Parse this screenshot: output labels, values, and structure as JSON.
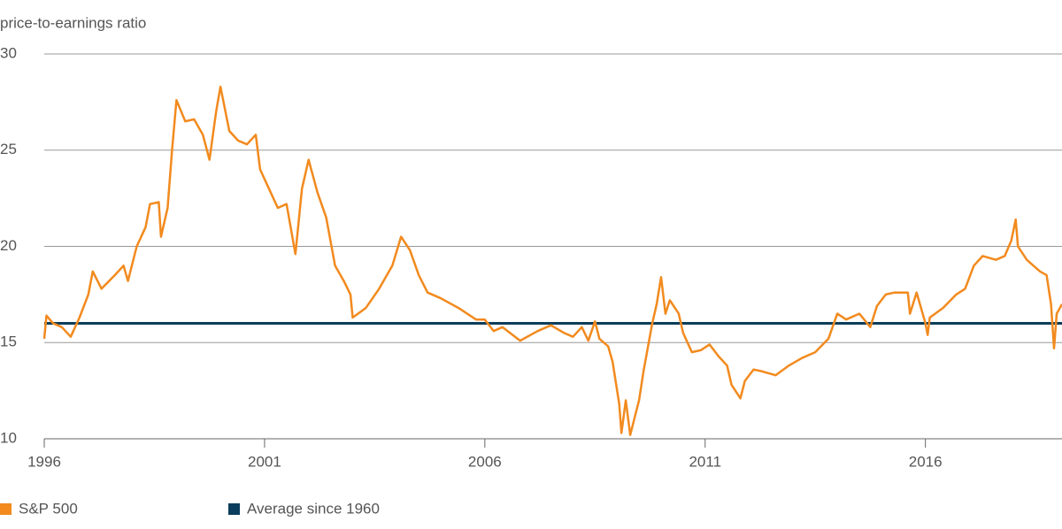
{
  "chart_data": {
    "type": "line",
    "y_label": "price-to-earnings ratio",
    "xlim": [
      1996,
      2019.1
    ],
    "xticks": [
      1996,
      2001,
      2006,
      2011,
      2016
    ],
    "ylim": [
      10,
      30
    ],
    "yticks": [
      10,
      15,
      20,
      25,
      30
    ],
    "grid": true,
    "legend": "bottom",
    "series": [
      {
        "name": "S&P 500",
        "color": "#f28a1e",
        "x": [
          1996.0,
          1996.05,
          1996.2,
          1996.4,
          1996.6,
          1996.8,
          1997.0,
          1997.1,
          1997.3,
          1997.6,
          1997.8,
          1997.9,
          1998.1,
          1998.3,
          1998.4,
          1998.6,
          1998.65,
          1998.8,
          1998.9,
          1999.0,
          1999.2,
          1999.4,
          1999.6,
          1999.75,
          1999.9,
          2000.0,
          2000.2,
          2000.4,
          2000.6,
          2000.8,
          2000.9,
          2001.1,
          2001.3,
          2001.5,
          2001.7,
          2001.85,
          2002.0,
          2002.2,
          2002.4,
          2002.6,
          2002.8,
          2002.95,
          2003.0,
          2003.3,
          2003.6,
          2003.9,
          2004.1,
          2004.3,
          2004.5,
          2004.7,
          2005.0,
          2005.4,
          2005.8,
          2006.0,
          2006.2,
          2006.4,
          2006.8,
          2007.2,
          2007.5,
          2007.8,
          2008.0,
          2008.2,
          2008.35,
          2008.5,
          2008.6,
          2008.8,
          2008.9,
          2009.05,
          2009.1,
          2009.2,
          2009.3,
          2009.5,
          2009.6,
          2009.8,
          2009.9,
          2010.0,
          2010.1,
          2010.2,
          2010.4,
          2010.5,
          2010.7,
          2010.9,
          2011.1,
          2011.3,
          2011.5,
          2011.6,
          2011.8,
          2011.9,
          2012.1,
          2012.3,
          2012.6,
          2012.9,
          2013.2,
          2013.5,
          2013.8,
          2014.0,
          2014.2,
          2014.5,
          2014.75,
          2014.9,
          2015.1,
          2015.3,
          2015.6,
          2015.65,
          2015.8,
          2016.0,
          2016.05,
          2016.1,
          2016.4,
          2016.7,
          2016.9,
          2017.1,
          2017.3,
          2017.6,
          2017.8,
          2017.95,
          2018.05,
          2018.1,
          2018.3,
          2018.6,
          2018.75,
          2018.85,
          2018.92,
          2018.98,
          2019.1
        ],
        "values": [
          15.2,
          16.4,
          16.0,
          15.8,
          15.3,
          16.3,
          17.5,
          18.7,
          17.8,
          18.5,
          19.0,
          18.2,
          20.0,
          21.0,
          22.2,
          22.3,
          20.5,
          22.0,
          25.0,
          27.6,
          26.5,
          26.6,
          25.8,
          24.5,
          27.0,
          28.3,
          26.0,
          25.5,
          25.3,
          25.8,
          24.0,
          23.0,
          22.0,
          22.2,
          19.6,
          23.0,
          24.5,
          22.8,
          21.5,
          19.0,
          18.2,
          17.5,
          16.3,
          16.8,
          17.8,
          19.0,
          20.5,
          19.8,
          18.5,
          17.6,
          17.3,
          16.8,
          16.2,
          16.2,
          15.6,
          15.8,
          15.1,
          15.6,
          15.9,
          15.5,
          15.3,
          15.8,
          15.1,
          16.1,
          15.2,
          14.8,
          14.0,
          11.8,
          10.3,
          12.0,
          10.2,
          12.0,
          13.5,
          16.0,
          17.0,
          18.4,
          16.5,
          17.2,
          16.5,
          15.5,
          14.5,
          14.6,
          14.9,
          14.3,
          13.8,
          12.8,
          12.1,
          13.0,
          13.6,
          13.5,
          13.3,
          13.8,
          14.2,
          14.5,
          15.2,
          16.5,
          16.2,
          16.5,
          15.8,
          16.9,
          17.5,
          17.6,
          17.6,
          16.5,
          17.6,
          16.0,
          15.4,
          16.3,
          16.8,
          17.5,
          17.8,
          19.0,
          19.5,
          19.3,
          19.5,
          20.3,
          21.4,
          20.0,
          19.3,
          18.7,
          18.5,
          17.0,
          14.7,
          16.5,
          17.0
        ]
      },
      {
        "name": "Average since 1960",
        "color": "#0b3d5c",
        "x": [
          1996,
          2019.1
        ],
        "values": [
          16,
          16
        ]
      }
    ]
  }
}
